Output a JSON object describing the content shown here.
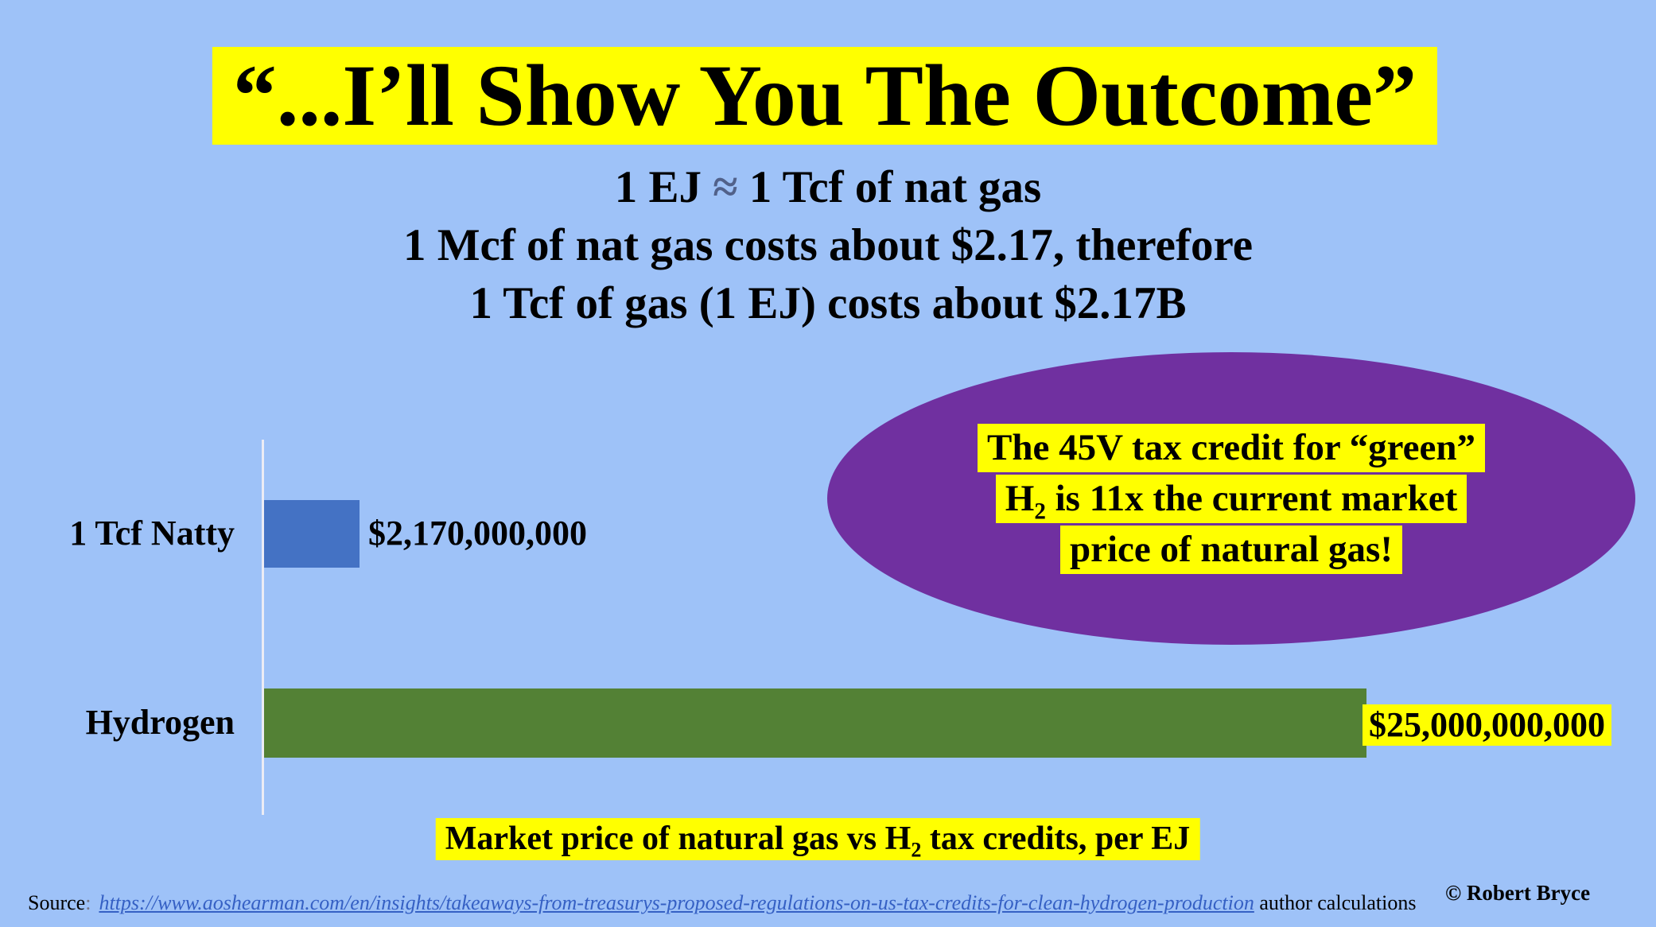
{
  "slide_title": "“...I’ll Show You The Outcome”",
  "subtitle": {
    "line1_pre": "1 EJ ",
    "line1_approx": "≈",
    "line1_post": " 1 Tcf of nat gas",
    "line2": "1 Mcf of nat gas costs about $2.17, therefore",
    "line3": "1 Tcf of gas (1 EJ) costs about $2.17B"
  },
  "chart_data": {
    "type": "bar",
    "orientation": "horizontal",
    "categories": [
      "1 Tcf Natty",
      "Hydrogen"
    ],
    "values": [
      2170000000,
      25000000000
    ],
    "value_labels": [
      "$2,170,000,000",
      "$25,000,000,000"
    ],
    "bar_colors": [
      "#4472C4",
      "#538135"
    ],
    "xlim": [
      0,
      25000000000
    ],
    "title": "Market price of natural gas vs H2 tax credits, per EJ",
    "legend": "none",
    "grid": false
  },
  "callout": {
    "line1": "The 45V tax credit for “green”",
    "line2_pre": "H",
    "line2_sub": "2",
    "line2_post": " is 11x the current market",
    "line3": "price of natural gas!"
  },
  "caption": {
    "pre": "Market price of natural gas vs H",
    "sub": "2",
    "post": " tax credits, per EJ"
  },
  "footer": {
    "source_label": "Source",
    "source_colon": ":",
    "source_url": "https://www.aoshearman.com/en/insights/takeaways-from-treasurys-proposed-regulations-on-us-tax-credits-for-clean-hydrogen-production",
    "source_suffix": " author calculations",
    "copyright": "© Robert Bryce"
  },
  "colors": {
    "background": "#9EC2F8",
    "highlight_yellow": "#FFFF00",
    "bar_blue": "#4472C4",
    "bar_green": "#538135",
    "ellipse_purple": "#7030A0",
    "link_blue": "#3560C4",
    "axis_line": "#ECECF4"
  }
}
